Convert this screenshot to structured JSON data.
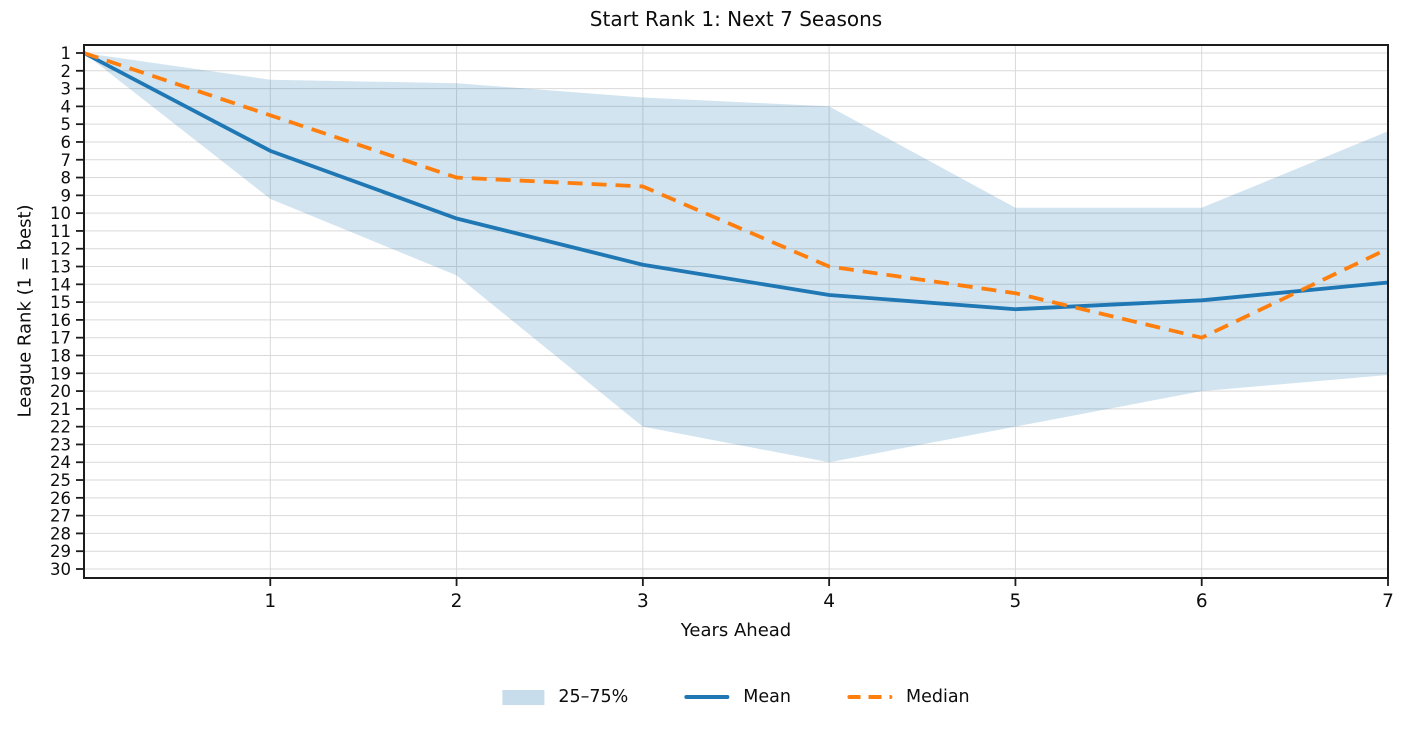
{
  "chart_data": {
    "type": "line",
    "title": "Start Rank 1: Next 7 Seasons",
    "xlabel": "Years Ahead",
    "ylabel": "League Rank (1 = best)",
    "grid": true,
    "x_axis": {
      "range": [
        0,
        7
      ],
      "ticks": [
        1,
        2,
        3,
        4,
        5,
        6,
        7
      ]
    },
    "y_axis": {
      "range": [
        1,
        30
      ],
      "inverted": true,
      "ticks": [
        1,
        2,
        3,
        4,
        5,
        6,
        7,
        8,
        9,
        10,
        11,
        12,
        13,
        14,
        15,
        16,
        17,
        18,
        19,
        20,
        21,
        22,
        23,
        24,
        25,
        26,
        27,
        28,
        29,
        30
      ]
    },
    "x": [
      0,
      1,
      2,
      3,
      4,
      5,
      6,
      7
    ],
    "series": [
      {
        "name": "Mean",
        "style": "solid",
        "color": "#1f77b4",
        "values": [
          1,
          6.5,
          10.3,
          12.9,
          14.6,
          15.4,
          14.9,
          13.9
        ]
      },
      {
        "name": "Median",
        "style": "dashed",
        "color": "#ff7f0e",
        "values": [
          1,
          4.5,
          8,
          8.5,
          13,
          14.5,
          17,
          12
        ]
      }
    ],
    "band": {
      "name": "25–75%",
      "color": "#1f77b4",
      "opacity": 0.2,
      "upper_25th": [
        1,
        2.5,
        2.7,
        3.5,
        4,
        9.7,
        9.7,
        5.4
      ],
      "lower_75th": [
        1,
        9.2,
        13.5,
        22,
        24,
        22,
        20,
        19.1
      ]
    },
    "legend": {
      "position": "bottom-center",
      "items": [
        {
          "label": "25–75%",
          "swatch": "band"
        },
        {
          "label": "Mean",
          "swatch": "solid-line"
        },
        {
          "label": "Median",
          "swatch": "dashed-line"
        }
      ]
    },
    "colors": {
      "mean_line": "#1f77b4",
      "median_line": "#ff7f0e",
      "band_fill": "#1f77b4",
      "spine": "#1c1c1c",
      "gridline": "#d9d9d9"
    }
  }
}
